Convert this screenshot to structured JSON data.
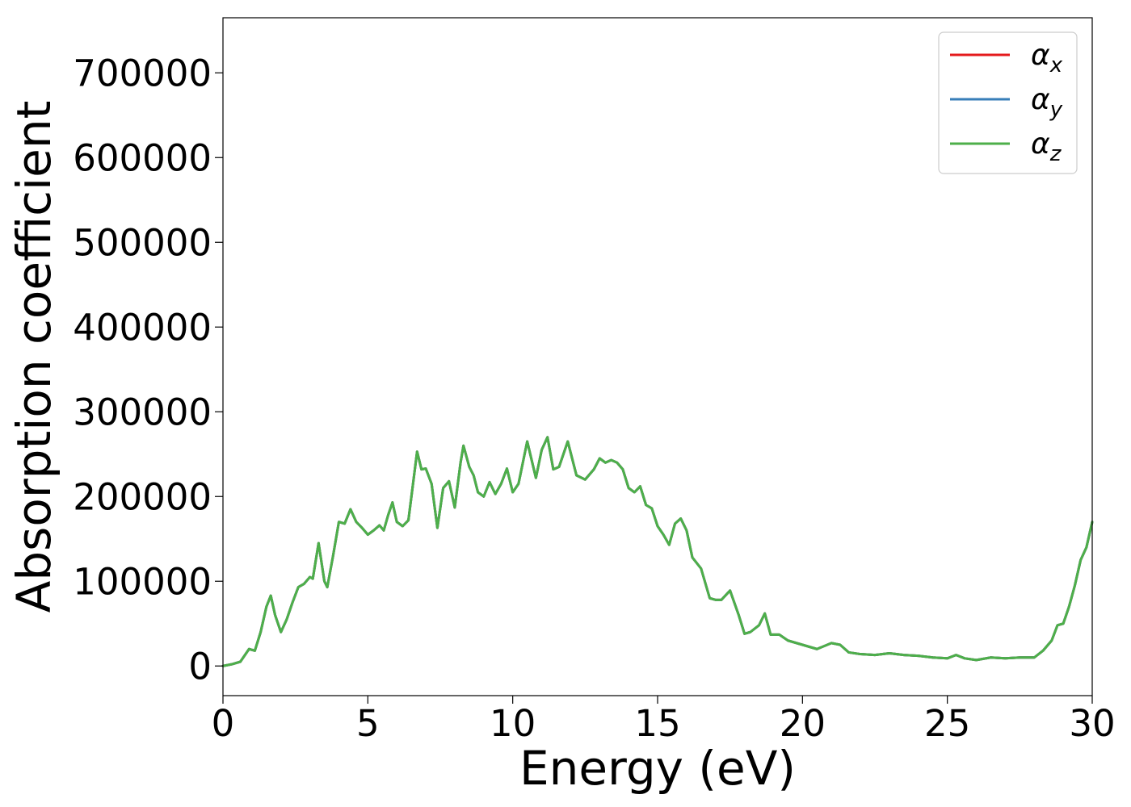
{
  "chart_data": {
    "type": "line",
    "title": "",
    "xlabel": "Energy (eV)",
    "ylabel": "Absorption coefficient",
    "xlim": [
      0,
      30
    ],
    "ylim": [
      -35000,
      765000
    ],
    "xticks": [
      0,
      5,
      10,
      15,
      20,
      25,
      30
    ],
    "yticks": [
      0,
      100000,
      200000,
      300000,
      400000,
      500000,
      600000,
      700000
    ],
    "grid": false,
    "legend_position": "top-right",
    "series": [
      {
        "name": "α",
        "subscript": "x",
        "color": "#e41a1c"
      },
      {
        "name": "α",
        "subscript": "y",
        "color": "#377eb8"
      },
      {
        "name": "α",
        "subscript": "z",
        "color": "#4daf4a"
      }
    ],
    "x": [
      0,
      0.3,
      0.6,
      0.9,
      1.1,
      1.3,
      1.5,
      1.65,
      1.8,
      2.0,
      2.2,
      2.4,
      2.6,
      2.8,
      3.0,
      3.1,
      3.3,
      3.5,
      3.6,
      3.8,
      4.0,
      4.2,
      4.4,
      4.6,
      4.8,
      5.0,
      5.2,
      5.4,
      5.55,
      5.7,
      5.85,
      6.0,
      6.2,
      6.4,
      6.7,
      6.85,
      7.0,
      7.2,
      7.4,
      7.6,
      7.8,
      8.0,
      8.2,
      8.3,
      8.5,
      8.65,
      8.8,
      9.0,
      9.2,
      9.4,
      9.6,
      9.8,
      10.0,
      10.2,
      10.5,
      10.8,
      11.0,
      11.2,
      11.4,
      11.6,
      11.9,
      12.2,
      12.5,
      12.8,
      13.0,
      13.2,
      13.4,
      13.6,
      13.8,
      14.0,
      14.2,
      14.4,
      14.6,
      14.8,
      15.0,
      15.2,
      15.4,
      15.6,
      15.8,
      16.0,
      16.2,
      16.5,
      16.8,
      17.0,
      17.2,
      17.5,
      17.8,
      18.0,
      18.2,
      18.5,
      18.7,
      18.9,
      19.2,
      19.5,
      20.0,
      20.5,
      21.0,
      21.3,
      21.6,
      22.0,
      22.5,
      23.0,
      23.5,
      24.0,
      24.5,
      25.0,
      25.3,
      25.6,
      26.0,
      26.5,
      27.0,
      27.5,
      28.0,
      28.3,
      28.6,
      28.8,
      29.0,
      29.2,
      29.4,
      29.6,
      29.8,
      30.0
    ],
    "values": [
      0,
      2000,
      5000,
      20000,
      18000,
      40000,
      70000,
      83000,
      60000,
      40000,
      55000,
      75000,
      93000,
      97000,
      105000,
      103000,
      145000,
      100000,
      93000,
      130000,
      170000,
      168000,
      185000,
      170000,
      163000,
      155000,
      160000,
      166000,
      160000,
      178000,
      193000,
      170000,
      165000,
      172000,
      253000,
      232000,
      233000,
      215000,
      163000,
      210000,
      218000,
      187000,
      240000,
      260000,
      235000,
      225000,
      205000,
      200000,
      217000,
      203000,
      215000,
      233000,
      205000,
      215000,
      265000,
      222000,
      255000,
      270000,
      232000,
      235000,
      265000,
      225000,
      220000,
      232000,
      245000,
      240000,
      243000,
      240000,
      232000,
      210000,
      205000,
      212000,
      190000,
      186000,
      165000,
      155000,
      143000,
      168000,
      174000,
      160000,
      128000,
      115000,
      80000,
      78000,
      78000,
      89000,
      60000,
      38000,
      40000,
      48000,
      62000,
      37000,
      37000,
      30000,
      25000,
      20000,
      27000,
      25000,
      16000,
      14000,
      13000,
      15000,
      13000,
      12000,
      10000,
      9000,
      13000,
      9000,
      7000,
      10000,
      9000,
      10000,
      10000,
      18000,
      30000,
      48000,
      50000,
      70000,
      95000,
      125000,
      140000,
      170000
    ]
  }
}
